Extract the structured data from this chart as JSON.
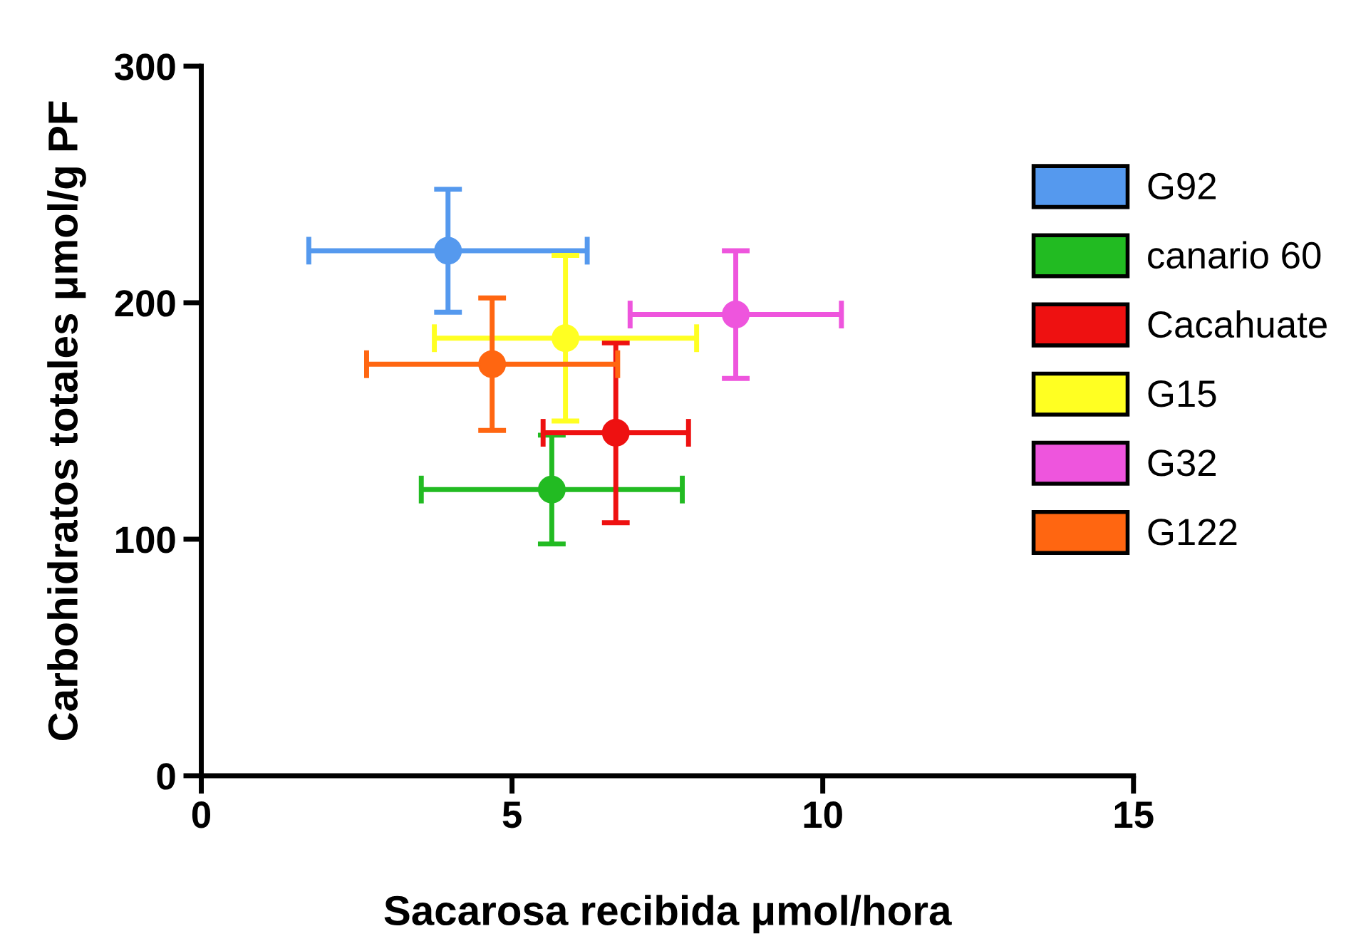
{
  "chart_data": {
    "type": "scatter",
    "xlabel": "Sacarosa recibida μmol/hora",
    "ylabel": "Carbohidratos totales μmol/g PF",
    "xlim": [
      0,
      15
    ],
    "xticks": [
      0,
      5,
      10,
      15
    ],
    "ylim": [
      0,
      300
    ],
    "yticks": [
      0,
      100,
      200,
      300
    ],
    "grid": false,
    "legend": "right",
    "marker": "circle",
    "series": [
      {
        "name": "G92",
        "color": "#5599ee",
        "x": [
          3.97
        ],
        "values": [
          222
        ],
        "errors": [
          26
        ],
        "xerrors": [
          2.24
        ]
      },
      {
        "name": "canario 60",
        "color": "#22bb22",
        "x": [
          5.64
        ],
        "values": [
          121
        ],
        "errors": [
          23
        ],
        "xerrors": [
          2.1
        ]
      },
      {
        "name": "Cacahuate",
        "color": "#ee1111",
        "x": [
          6.67
        ],
        "values": [
          145
        ],
        "errors": [
          38
        ],
        "xerrors": [
          1.17
        ]
      },
      {
        "name": "G15",
        "color": "#ffff22",
        "x": [
          5.86
        ],
        "values": [
          185
        ],
        "errors": [
          35
        ],
        "xerrors": [
          2.11
        ]
      },
      {
        "name": "G32",
        "color": "#ee55dd",
        "x": [
          8.6
        ],
        "values": [
          195
        ],
        "errors": [
          27
        ],
        "xerrors": [
          1.7
        ]
      },
      {
        "name": "G122",
        "color": "#ff6611",
        "x": [
          4.68
        ],
        "values": [
          174
        ],
        "errors": [
          28
        ],
        "xerrors": [
          2.02
        ]
      }
    ]
  }
}
